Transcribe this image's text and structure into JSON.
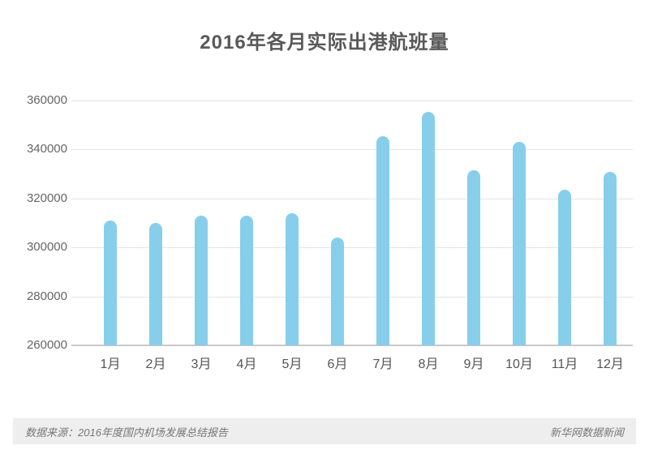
{
  "page": {
    "title": "2016年各月实际出港航班量"
  },
  "footer": {
    "source": "数据来源：2016年度国内机场发展总结报告",
    "credit": "新华网数据新闻"
  },
  "colors": {
    "bar": "#87CEEB",
    "gridline": "#e4e4e4",
    "axis_line": "#c9c9c9",
    "title_text": "#595959",
    "axis_text": "#666666",
    "footer_bg": "#eeeeee",
    "footer_text": "#777777"
  },
  "chart_data": {
    "type": "bar",
    "title": "2016年各月实际出港航班量",
    "categories": [
      "1月",
      "2月",
      "3月",
      "4月",
      "5月",
      "6月",
      "7月",
      "8月",
      "9月",
      "10月",
      "11月",
      "12月"
    ],
    "values": [
      311000,
      310000,
      313000,
      313000,
      314000,
      304000,
      345500,
      355500,
      331500,
      343000,
      323500,
      331000
    ],
    "xlabel": "",
    "ylabel": "",
    "ylim": [
      260000,
      360000
    ],
    "yticks": [
      260000,
      280000,
      300000,
      320000,
      340000,
      360000
    ],
    "grid": true,
    "legend": "none",
    "bar_color": "#87CEEB"
  }
}
